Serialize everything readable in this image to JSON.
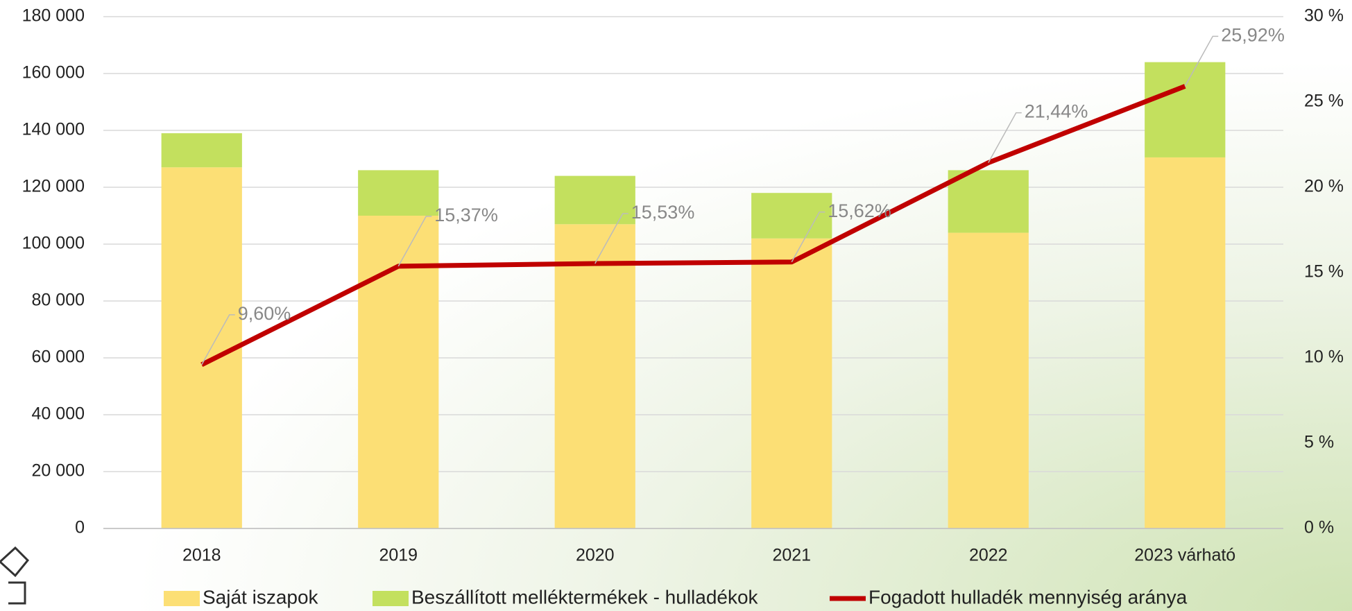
{
  "chart_data": {
    "type": "bar",
    "categories": [
      "2018",
      "2019",
      "2020",
      "2021",
      "2022",
      "2023 várható"
    ],
    "series": [
      {
        "name": "Saját iszapok",
        "color": "#fcdf75",
        "values": [
          127000,
          110000,
          107000,
          102000,
          104000,
          130500
        ]
      },
      {
        "name": "Beszállított melléktermékek - hulladékok",
        "color": "#c3e05e",
        "values": [
          12000,
          16000,
          17000,
          16000,
          22000,
          33500
        ]
      },
      {
        "name": "Fogadott hulladék mennyiség aránya",
        "color": "#c00000",
        "type": "line",
        "axis": "y2",
        "values": [
          9.6,
          15.37,
          15.53,
          15.62,
          21.44,
          25.92
        ],
        "value_labels": [
          "9,60%",
          "15,37%",
          "15,53%",
          "15,62%",
          "21,44%",
          "25,92%"
        ]
      }
    ],
    "ylim": [
      0,
      180000
    ],
    "yticks": [
      {
        "value": 0,
        "label": "0"
      },
      {
        "value": 20000,
        "label": "20 000"
      },
      {
        "value": 40000,
        "label": "40 000"
      },
      {
        "value": 60000,
        "label": "60 000"
      },
      {
        "value": 80000,
        "label": "80 000"
      },
      {
        "value": 100000,
        "label": "100 000"
      },
      {
        "value": 120000,
        "label": "120 000"
      },
      {
        "value": 140000,
        "label": "140 000"
      },
      {
        "value": 160000,
        "label": "160 000"
      },
      {
        "value": 180000,
        "label": "180 000"
      }
    ],
    "y2lim": [
      0,
      30
    ],
    "y2ticks": [
      {
        "value": 0,
        "label": "0 %"
      },
      {
        "value": 5,
        "label": "5 %"
      },
      {
        "value": 10,
        "label": "10 %"
      },
      {
        "value": 15,
        "label": "15 %"
      },
      {
        "value": 20,
        "label": "20 %"
      },
      {
        "value": 25,
        "label": "25 %"
      },
      {
        "value": 30,
        "label": "30 %"
      }
    ],
    "grid": true,
    "legend": "bottom"
  }
}
